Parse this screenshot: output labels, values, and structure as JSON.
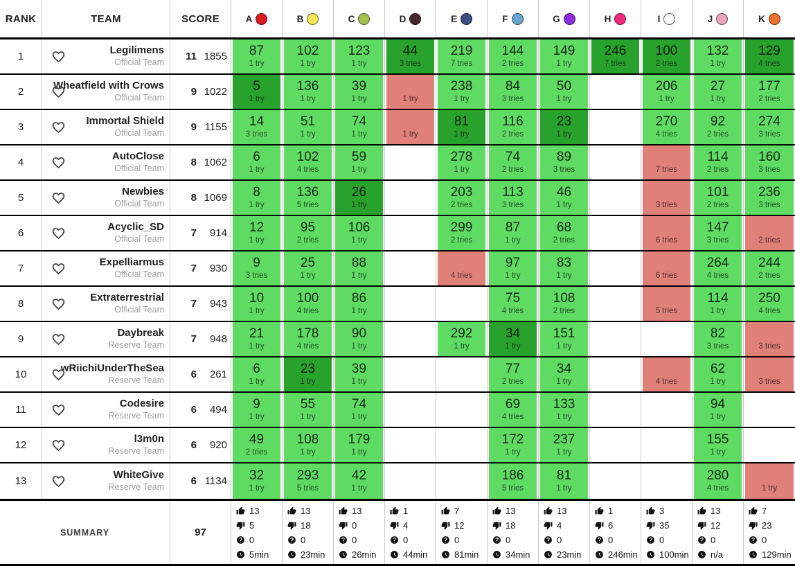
{
  "table": {
    "columns": {
      "rank": "RANK",
      "team": "TEAM",
      "score": "SCORE"
    },
    "cell_colors": {
      "solved": "#5fdb63",
      "first": "#28a22d",
      "failed": "#e08179"
    },
    "problems": [
      {
        "letter": "A",
        "balloon_color": "#da1b24"
      },
      {
        "letter": "B",
        "balloon_color": "#f7e259"
      },
      {
        "letter": "C",
        "balloon_color": "#a2c14e"
      },
      {
        "letter": "D",
        "balloon_color": "#46262d"
      },
      {
        "letter": "E",
        "balloon_color": "#3d4d82"
      },
      {
        "letter": "F",
        "balloon_color": "#6ba5cd"
      },
      {
        "letter": "G",
        "balloon_color": "#8c2fe0"
      },
      {
        "letter": "H",
        "balloon_color": "#f02b81"
      },
      {
        "letter": "I",
        "balloon_color": "#ffffff"
      },
      {
        "letter": "J",
        "balloon_color": "#e9a4be"
      },
      {
        "letter": "K",
        "balloon_color": "#ec7130"
      }
    ],
    "teams": [
      {
        "rank": 1,
        "name": "Legilimens",
        "category": "Official Team",
        "solved": 11,
        "penalty": 1855,
        "cells": [
          {
            "state": "solved",
            "time": "87",
            "tries": "1 try"
          },
          {
            "state": "solved",
            "time": "102",
            "tries": "1 try"
          },
          {
            "state": "solved",
            "time": "123",
            "tries": "1 try"
          },
          {
            "state": "first",
            "time": "44",
            "tries": "3 tries"
          },
          {
            "state": "solved",
            "time": "219",
            "tries": "7 tries"
          },
          {
            "state": "solved",
            "time": "144",
            "tries": "2 tries"
          },
          {
            "state": "solved",
            "time": "149",
            "tries": "1 try"
          },
          {
            "state": "first",
            "time": "246",
            "tries": "7 tries"
          },
          {
            "state": "first",
            "time": "100",
            "tries": "2 tries"
          },
          {
            "state": "solved",
            "time": "132",
            "tries": "1 try"
          },
          {
            "state": "first",
            "time": "129",
            "tries": "4 tries"
          }
        ]
      },
      {
        "rank": 2,
        "name": "Wheatfield with Crows",
        "category": "Official Team",
        "solved": 9,
        "penalty": 1022,
        "cells": [
          {
            "state": "first",
            "time": "5",
            "tries": "1 try"
          },
          {
            "state": "solved",
            "time": "136",
            "tries": "1 try"
          },
          {
            "state": "solved",
            "time": "39",
            "tries": "1 try"
          },
          {
            "state": "failed",
            "time": "",
            "tries": "1 try"
          },
          {
            "state": "solved",
            "time": "238",
            "tries": "1 try"
          },
          {
            "state": "solved",
            "time": "84",
            "tries": "3 tries"
          },
          {
            "state": "solved",
            "time": "50",
            "tries": "1 try"
          },
          null,
          {
            "state": "solved",
            "time": "206",
            "tries": "1 try"
          },
          {
            "state": "solved",
            "time": "27",
            "tries": "1 try"
          },
          {
            "state": "solved",
            "time": "177",
            "tries": "2 tries"
          }
        ]
      },
      {
        "rank": 3,
        "name": "Immortal Shield",
        "category": "Official Team",
        "solved": 9,
        "penalty": 1155,
        "cells": [
          {
            "state": "solved",
            "time": "14",
            "tries": "3 tries"
          },
          {
            "state": "solved",
            "time": "51",
            "tries": "1 try"
          },
          {
            "state": "solved",
            "time": "74",
            "tries": "1 try"
          },
          {
            "state": "failed",
            "time": "",
            "tries": "1 try"
          },
          {
            "state": "first",
            "time": "81",
            "tries": "1 try"
          },
          {
            "state": "solved",
            "time": "116",
            "tries": "2 tries"
          },
          {
            "state": "first",
            "time": "23",
            "tries": "1 try"
          },
          null,
          {
            "state": "solved",
            "time": "270",
            "tries": "4 tries"
          },
          {
            "state": "solved",
            "time": "92",
            "tries": "2 tries"
          },
          {
            "state": "solved",
            "time": "274",
            "tries": "3 tries"
          }
        ]
      },
      {
        "rank": 4,
        "name": "AutoClose",
        "category": "Official Team",
        "solved": 8,
        "penalty": 1062,
        "cells": [
          {
            "state": "solved",
            "time": "6",
            "tries": "1 try"
          },
          {
            "state": "solved",
            "time": "102",
            "tries": "4 tries"
          },
          {
            "state": "solved",
            "time": "59",
            "tries": "1 try"
          },
          null,
          {
            "state": "solved",
            "time": "278",
            "tries": "1 try"
          },
          {
            "state": "solved",
            "time": "74",
            "tries": "2 tries"
          },
          {
            "state": "solved",
            "time": "89",
            "tries": "3 tries"
          },
          null,
          {
            "state": "failed",
            "time": "",
            "tries": "7 tries"
          },
          {
            "state": "solved",
            "time": "114",
            "tries": "2 tries"
          },
          {
            "state": "solved",
            "time": "160",
            "tries": "3 tries"
          }
        ]
      },
      {
        "rank": 5,
        "name": "Newbies",
        "category": "Official Team",
        "solved": 8,
        "penalty": 1069,
        "cells": [
          {
            "state": "solved",
            "time": "8",
            "tries": "1 try"
          },
          {
            "state": "solved",
            "time": "136",
            "tries": "5 tries"
          },
          {
            "state": "first",
            "time": "26",
            "tries": "1 try"
          },
          null,
          {
            "state": "solved",
            "time": "203",
            "tries": "2 tries"
          },
          {
            "state": "solved",
            "time": "113",
            "tries": "3 tries"
          },
          {
            "state": "solved",
            "time": "46",
            "tries": "1 try"
          },
          null,
          {
            "state": "failed",
            "time": "",
            "tries": "3 tries"
          },
          {
            "state": "solved",
            "time": "101",
            "tries": "2 tries"
          },
          {
            "state": "solved",
            "time": "236",
            "tries": "3 tries"
          }
        ]
      },
      {
        "rank": 6,
        "name": "Acyclic_SD",
        "category": "Official Team",
        "solved": 7,
        "penalty": 914,
        "cells": [
          {
            "state": "solved",
            "time": "12",
            "tries": "1 try"
          },
          {
            "state": "solved",
            "time": "95",
            "tries": "2 tries"
          },
          {
            "state": "solved",
            "time": "106",
            "tries": "1 try"
          },
          null,
          {
            "state": "solved",
            "time": "299",
            "tries": "2 tries"
          },
          {
            "state": "solved",
            "time": "87",
            "tries": "1 try"
          },
          {
            "state": "solved",
            "time": "68",
            "tries": "2 tries"
          },
          null,
          {
            "state": "failed",
            "time": "",
            "tries": "6 tries"
          },
          {
            "state": "solved",
            "time": "147",
            "tries": "3 tries"
          },
          {
            "state": "failed",
            "time": "",
            "tries": "2 tries"
          }
        ]
      },
      {
        "rank": 7,
        "name": "Expelliarmus",
        "category": "Official Team",
        "solved": 7,
        "penalty": 930,
        "cells": [
          {
            "state": "solved",
            "time": "9",
            "tries": "3 tries"
          },
          {
            "state": "solved",
            "time": "25",
            "tries": "1 try"
          },
          {
            "state": "solved",
            "time": "88",
            "tries": "1 try"
          },
          null,
          {
            "state": "failed",
            "time": "",
            "tries": "4 tries"
          },
          {
            "state": "solved",
            "time": "97",
            "tries": "1 try"
          },
          {
            "state": "solved",
            "time": "83",
            "tries": "1 try"
          },
          null,
          {
            "state": "failed",
            "time": "",
            "tries": "6 tries"
          },
          {
            "state": "solved",
            "time": "264",
            "tries": "4 tries"
          },
          {
            "state": "solved",
            "time": "244",
            "tries": "2 tries"
          }
        ]
      },
      {
        "rank": 8,
        "name": "Extraterrestrial",
        "category": "Official Team",
        "solved": 7,
        "penalty": 943,
        "cells": [
          {
            "state": "solved",
            "time": "10",
            "tries": "1 try"
          },
          {
            "state": "solved",
            "time": "100",
            "tries": "4 tries"
          },
          {
            "state": "solved",
            "time": "86",
            "tries": "1 try"
          },
          null,
          null,
          {
            "state": "solved",
            "time": "75",
            "tries": "4 tries"
          },
          {
            "state": "solved",
            "time": "108",
            "tries": "2 tries"
          },
          null,
          {
            "state": "failed",
            "time": "",
            "tries": "5 tries"
          },
          {
            "state": "solved",
            "time": "114",
            "tries": "1 try"
          },
          {
            "state": "solved",
            "time": "250",
            "tries": "4 tries"
          }
        ]
      },
      {
        "rank": 9,
        "name": "Daybreak",
        "category": "Reserve Team",
        "solved": 7,
        "penalty": 948,
        "cells": [
          {
            "state": "solved",
            "time": "21",
            "tries": "1 try"
          },
          {
            "state": "solved",
            "time": "178",
            "tries": "4 tries"
          },
          {
            "state": "solved",
            "time": "90",
            "tries": "1 try"
          },
          null,
          {
            "state": "solved",
            "time": "292",
            "tries": "1 try"
          },
          {
            "state": "first",
            "time": "34",
            "tries": "1 try"
          },
          {
            "state": "solved",
            "time": "151",
            "tries": "1 try"
          },
          null,
          null,
          {
            "state": "solved",
            "time": "82",
            "tries": "3 tries"
          },
          {
            "state": "failed",
            "time": "",
            "tries": "3 tries"
          }
        ]
      },
      {
        "rank": 10,
        "name": "wRiichiUnderTheSea",
        "category": "Reserve Team",
        "solved": 6,
        "penalty": 261,
        "cells": [
          {
            "state": "solved",
            "time": "6",
            "tries": "1 try"
          },
          {
            "state": "first",
            "time": "23",
            "tries": "1 try"
          },
          {
            "state": "solved",
            "time": "39",
            "tries": "1 try"
          },
          null,
          null,
          {
            "state": "solved",
            "time": "77",
            "tries": "2 tries"
          },
          {
            "state": "solved",
            "time": "34",
            "tries": "1 try"
          },
          null,
          {
            "state": "failed",
            "time": "",
            "tries": "4 tries"
          },
          {
            "state": "solved",
            "time": "62",
            "tries": "1 try"
          },
          {
            "state": "failed",
            "time": "",
            "tries": "3 tries"
          }
        ]
      },
      {
        "rank": 11,
        "name": "Codesire",
        "category": "Reserve Team",
        "solved": 6,
        "penalty": 494,
        "cells": [
          {
            "state": "solved",
            "time": "9",
            "tries": "1 try"
          },
          {
            "state": "solved",
            "time": "55",
            "tries": "1 try"
          },
          {
            "state": "solved",
            "time": "74",
            "tries": "1 try"
          },
          null,
          null,
          {
            "state": "solved",
            "time": "69",
            "tries": "4 tries"
          },
          {
            "state": "solved",
            "time": "133",
            "tries": "1 try"
          },
          null,
          null,
          {
            "state": "solved",
            "time": "94",
            "tries": "1 try"
          },
          null
        ]
      },
      {
        "rank": 12,
        "name": "l3m0n",
        "category": "Reserve Team",
        "solved": 6,
        "penalty": 920,
        "cells": [
          {
            "state": "solved",
            "time": "49",
            "tries": "2 tries"
          },
          {
            "state": "solved",
            "time": "108",
            "tries": "1 try"
          },
          {
            "state": "solved",
            "time": "179",
            "tries": "1 try"
          },
          null,
          null,
          {
            "state": "solved",
            "time": "172",
            "tries": "1 try"
          },
          {
            "state": "solved",
            "time": "237",
            "tries": "1 try"
          },
          null,
          null,
          {
            "state": "solved",
            "time": "155",
            "tries": "1 try"
          },
          null
        ]
      },
      {
        "rank": 13,
        "name": "WhiteGive",
        "category": "Reserve Team",
        "solved": 6,
        "penalty": 1134,
        "cells": [
          {
            "state": "solved",
            "time": "32",
            "tries": "1 try"
          },
          {
            "state": "solved",
            "time": "293",
            "tries": "5 tries"
          },
          {
            "state": "solved",
            "time": "42",
            "tries": "1 try"
          },
          null,
          null,
          {
            "state": "solved",
            "time": "186",
            "tries": "5 tries"
          },
          {
            "state": "solved",
            "time": "81",
            "tries": "1 try"
          },
          null,
          null,
          {
            "state": "solved",
            "time": "280",
            "tries": "4 tries"
          },
          {
            "state": "failed",
            "time": "",
            "tries": "1 try"
          }
        ]
      }
    ],
    "summary": {
      "label": "SUMMARY",
      "total_solved": "97",
      "per_problem": [
        {
          "likes": "13",
          "dislikes": "5",
          "questions": "0",
          "avg_time": "5min"
        },
        {
          "likes": "13",
          "dislikes": "18",
          "questions": "0",
          "avg_time": "23min"
        },
        {
          "likes": "13",
          "dislikes": "0",
          "questions": "0",
          "avg_time": "26min"
        },
        {
          "likes": "1",
          "dislikes": "4",
          "questions": "0",
          "avg_time": "44min"
        },
        {
          "likes": "7",
          "dislikes": "12",
          "questions": "0",
          "avg_time": "81min"
        },
        {
          "likes": "13",
          "dislikes": "18",
          "questions": "0",
          "avg_time": "34min"
        },
        {
          "likes": "13",
          "dislikes": "4",
          "questions": "0",
          "avg_time": "23min"
        },
        {
          "likes": "1",
          "dislikes": "6",
          "questions": "0",
          "avg_time": "246min"
        },
        {
          "likes": "3",
          "dislikes": "35",
          "questions": "0",
          "avg_time": "100min"
        },
        {
          "likes": "13",
          "dislikes": "12",
          "questions": "0",
          "avg_time": "n/a"
        },
        {
          "likes": "7",
          "dislikes": "23",
          "questions": "0",
          "avg_time": "129min"
        }
      ]
    },
    "icons": {
      "favorite": "heart-outline-icon",
      "likes": "thumbs-up-icon",
      "dislikes": "thumbs-down-icon",
      "questions": "question-icon",
      "avg_time": "clock-icon"
    }
  }
}
